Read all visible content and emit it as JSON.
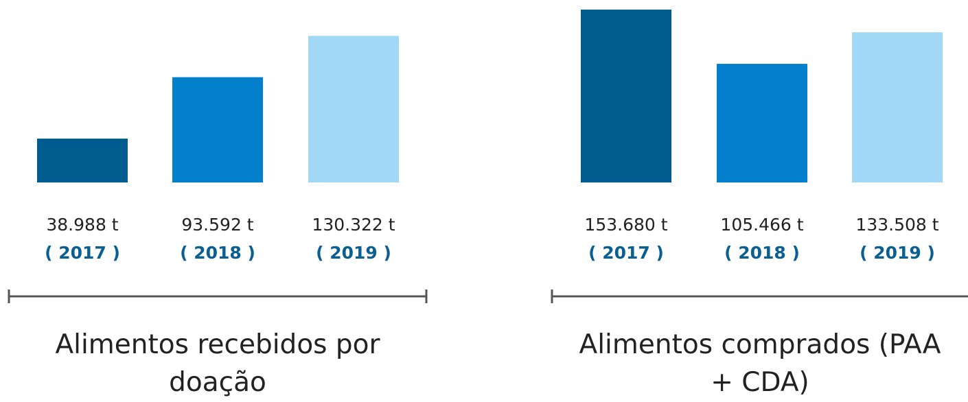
{
  "chart_data": [
    {
      "type": "bar",
      "title": "Alimentos recebidos por doação",
      "categories": [
        "( 2017 )",
        "( 2018 )",
        "( 2019 )"
      ],
      "values": [
        38988,
        93592,
        130322
      ],
      "value_labels": [
        "38.988 t",
        "93.592 t",
        "130.322 t"
      ],
      "colors": [
        "#005b8f",
        "#0280cc",
        "#a1d8f5"
      ]
    },
    {
      "type": "bar",
      "title": "Alimentos comprados (PAA + CDA)",
      "categories": [
        "( 2017 )",
        "( 2018 )",
        "( 2019 )"
      ],
      "values": [
        153680,
        105466,
        133508
      ],
      "value_labels": [
        "153.680 t",
        "105.466 t",
        "133.508 t"
      ],
      "colors": [
        "#005b8f",
        "#0280cc",
        "#a1d8f5"
      ]
    }
  ]
}
